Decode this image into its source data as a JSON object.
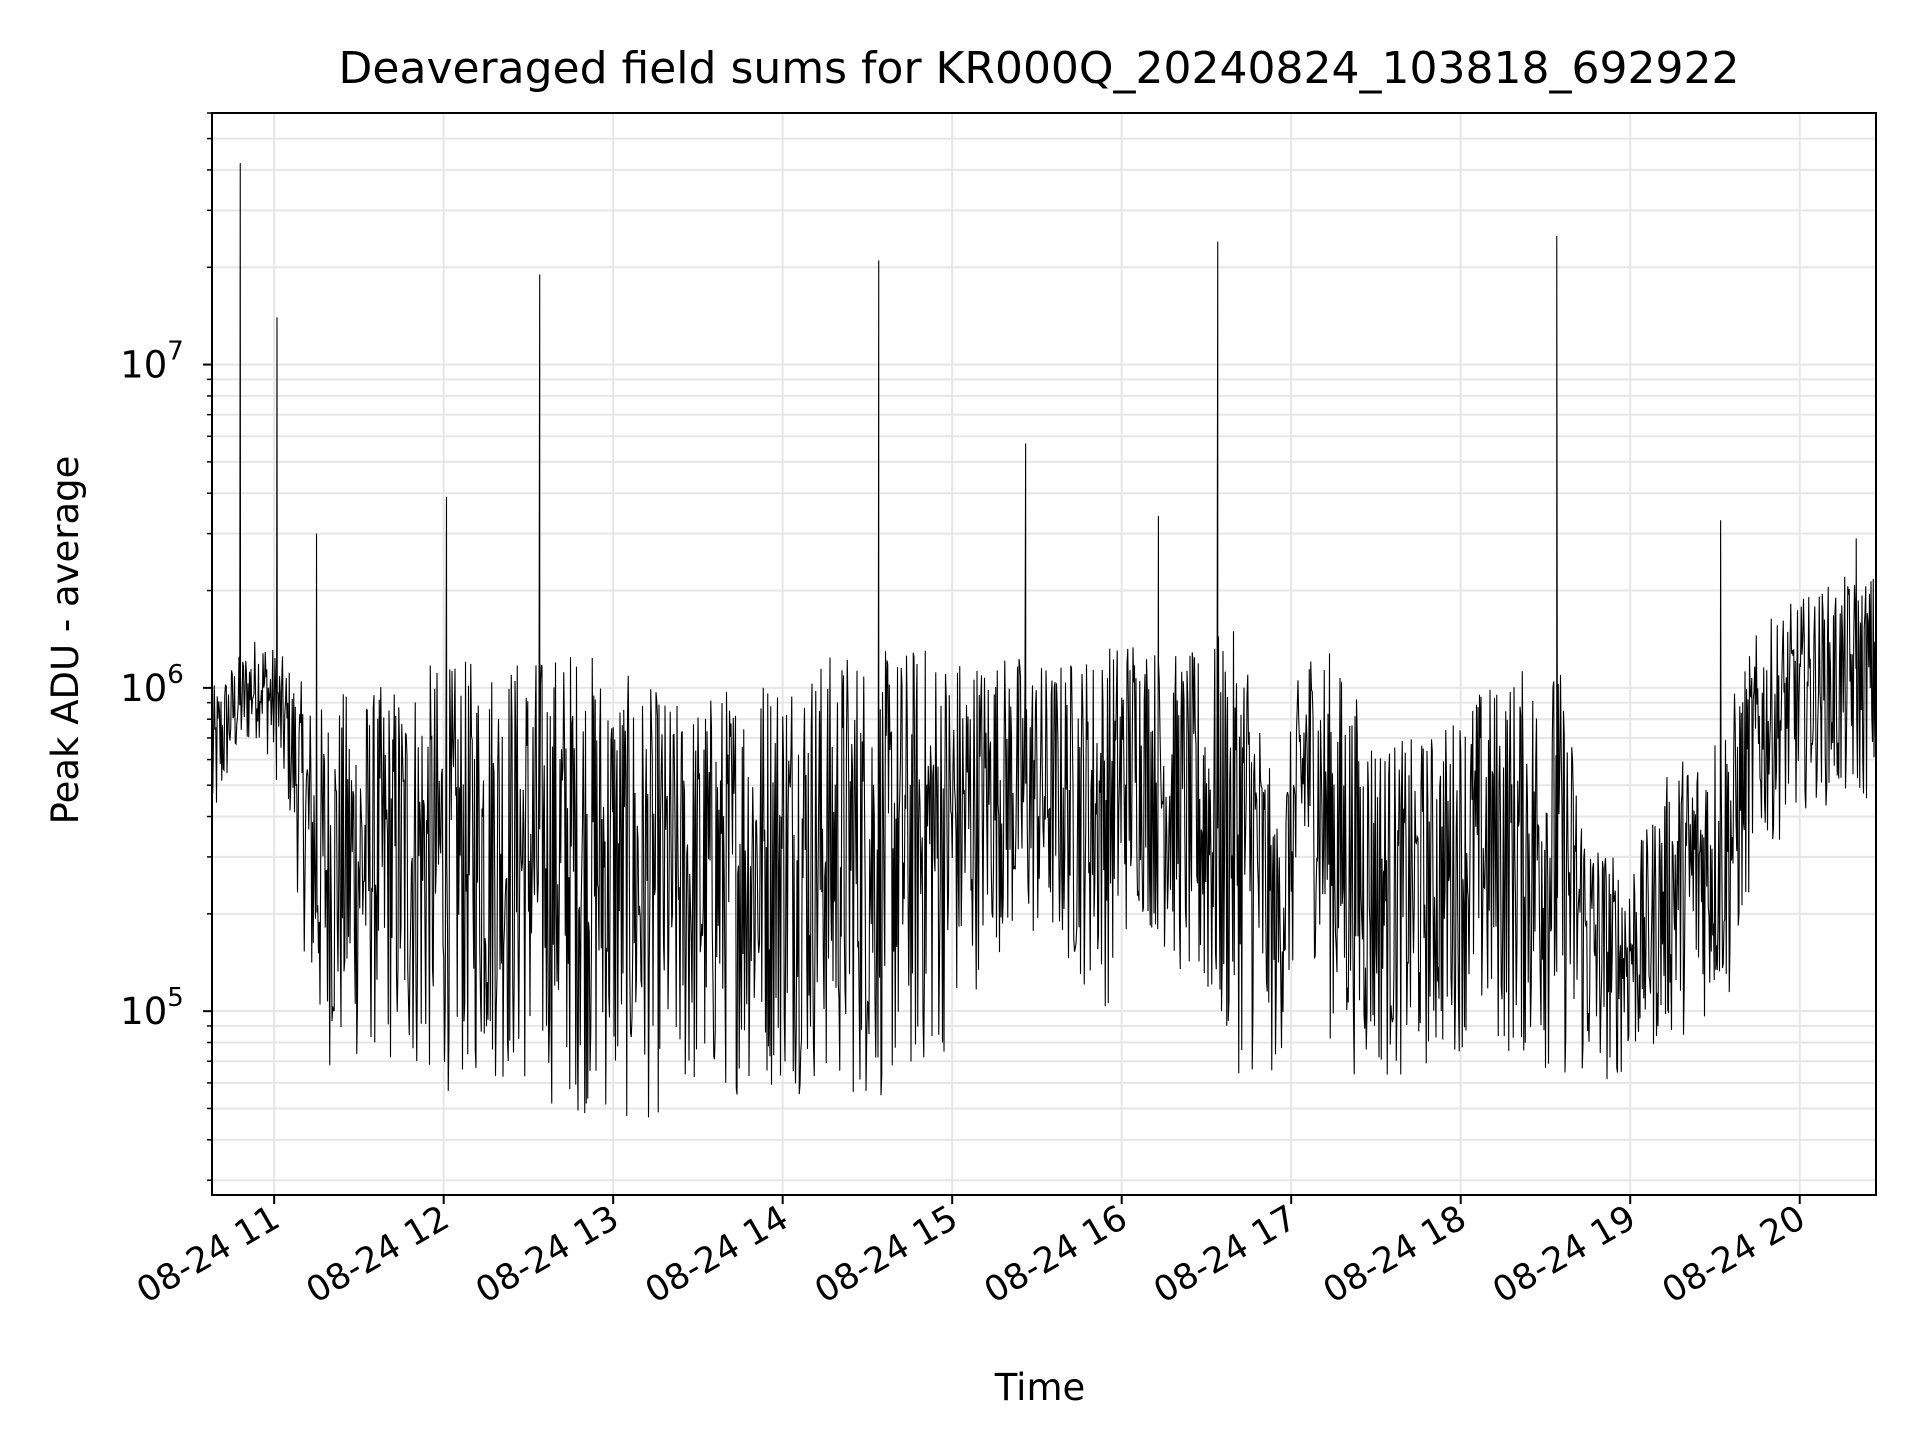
{
  "chart_data": {
    "type": "line",
    "title": "Deaveraged field sums for KR000Q_20240824_103818_692922",
    "xlabel": "Time",
    "ylabel": "Peak ADU - average",
    "y_scale": "log",
    "ylim": [
      27000,
      60000000
    ],
    "xlim": [
      "2024-08-24 10:38",
      "2024-08-24 20:27"
    ],
    "x_ticks": [
      "2024-08-24 11:00",
      "2024-08-24 12:00",
      "2024-08-24 13:00",
      "2024-08-24 14:00",
      "2024-08-24 15:00",
      "2024-08-24 16:00",
      "2024-08-24 17:00",
      "2024-08-24 18:00",
      "2024-08-24 19:00",
      "2024-08-24 20:00"
    ],
    "x_tick_labels": [
      "08-24 11",
      "08-24 12",
      "08-24 13",
      "08-24 14",
      "08-24 15",
      "08-24 16",
      "08-24 17",
      "08-24 18",
      "08-24 19",
      "08-24 20"
    ],
    "y_ticks": [
      100000,
      1000000,
      10000000
    ],
    "y_tick_labels": [
      {
        "base": "10",
        "exp": "5"
      },
      {
        "base": "10",
        "exp": "6"
      },
      {
        "base": "10",
        "exp": "7"
      }
    ],
    "grid": true,
    "line_color": "#000000",
    "series": [
      {
        "x": [
          "2024-08-24 10:38",
          "2024-08-24 10:45",
          "2024-08-24 10:55",
          "2024-08-24 11:05",
          "2024-08-24 11:15",
          "2024-08-24 11:25",
          "2024-08-24 11:35",
          "2024-08-24 11:45",
          "2024-08-24 11:55",
          "2024-08-24 12:05",
          "2024-08-24 12:15",
          "2024-08-24 12:25",
          "2024-08-24 12:35",
          "2024-08-24 12:45",
          "2024-08-24 12:55",
          "2024-08-24 13:05",
          "2024-08-24 13:15",
          "2024-08-24 13:25",
          "2024-08-24 13:35",
          "2024-08-24 13:45",
          "2024-08-24 13:55",
          "2024-08-24 14:05",
          "2024-08-24 14:15",
          "2024-08-24 14:25",
          "2024-08-24 14:35",
          "2024-08-24 14:45",
          "2024-08-24 14:55",
          "2024-08-24 15:05",
          "2024-08-24 15:15",
          "2024-08-24 15:25",
          "2024-08-24 15:35",
          "2024-08-24 15:45",
          "2024-08-24 15:55",
          "2024-08-24 16:05",
          "2024-08-24 16:15",
          "2024-08-24 16:25",
          "2024-08-24 16:35",
          "2024-08-24 16:45",
          "2024-08-24 16:55",
          "2024-08-24 17:05",
          "2024-08-24 17:15",
          "2024-08-24 17:25",
          "2024-08-24 17:35",
          "2024-08-24 17:45",
          "2024-08-24 17:55",
          "2024-08-24 18:05",
          "2024-08-24 18:15",
          "2024-08-24 18:25",
          "2024-08-24 18:35",
          "2024-08-24 18:45",
          "2024-08-24 18:55",
          "2024-08-24 19:05",
          "2024-08-24 19:15",
          "2024-08-24 19:25",
          "2024-08-24 19:35",
          "2024-08-24 19:45",
          "2024-08-24 19:55",
          "2024-08-24 20:05",
          "2024-08-24 20:15",
          "2024-08-24 20:27"
        ],
        "lo": [
          300000,
          550000,
          700000,
          400000,
          70000,
          60000,
          70000,
          60000,
          55000,
          55000,
          60000,
          55000,
          50000,
          48000,
          45000,
          42000,
          45000,
          48000,
          50000,
          55000,
          55000,
          55000,
          55000,
          50000,
          50000,
          55000,
          65000,
          100000,
          150000,
          150000,
          150000,
          120000,
          100000,
          200000,
          150000,
          100000,
          70000,
          60000,
          60000,
          200000,
          70000,
          60000,
          60000,
          60000,
          70000,
          80000,
          70000,
          65000,
          60000,
          55000,
          60000,
          70000,
          80000,
          90000,
          100000,
          300000,
          350000,
          450000,
          400000,
          450000
        ],
        "hi": [
          1000000,
          1200000,
          1500000,
          1200000,
          900000,
          1000000,
          1000000,
          1100000,
          1200000,
          1200000,
          1300000,
          1300000,
          1300000,
          1400000,
          1300000,
          1100000,
          1000000,
          900000,
          1000000,
          1100000,
          1200000,
          1300000,
          1300000,
          1400000,
          1300000,
          1400000,
          1400000,
          1300000,
          1300000,
          1300000,
          1200000,
          1300000,
          1400000,
          1600000,
          1300000,
          1300000,
          1500000,
          1500000,
          400000,
          1500000,
          1300000,
          900000,
          700000,
          700000,
          800000,
          1000000,
          1100000,
          1200000,
          1200000,
          400000,
          300000,
          350000,
          600000,
          700000,
          900000,
          1500000,
          1800000,
          2000000,
          2200000,
          2300000
        ],
        "spikes": [
          {
            "x": "2024-08-24 10:48",
            "y": 42000000
          },
          {
            "x": "2024-08-24 11:01",
            "y": 14000000
          },
          {
            "x": "2024-08-24 11:15",
            "y": 3000000
          },
          {
            "x": "2024-08-24 12:01",
            "y": 3900000
          },
          {
            "x": "2024-08-24 12:34",
            "y": 19000000
          },
          {
            "x": "2024-08-24 14:34",
            "y": 21000000
          },
          {
            "x": "2024-08-24 15:26",
            "y": 5700000
          },
          {
            "x": "2024-08-24 16:13",
            "y": 3400000
          },
          {
            "x": "2024-08-24 16:34",
            "y": 24000000
          },
          {
            "x": "2024-08-24 18:34",
            "y": 25000000
          },
          {
            "x": "2024-08-24 19:32",
            "y": 3300000
          },
          {
            "x": "2024-08-24 20:20",
            "y": 2900000
          }
        ]
      }
    ]
  }
}
